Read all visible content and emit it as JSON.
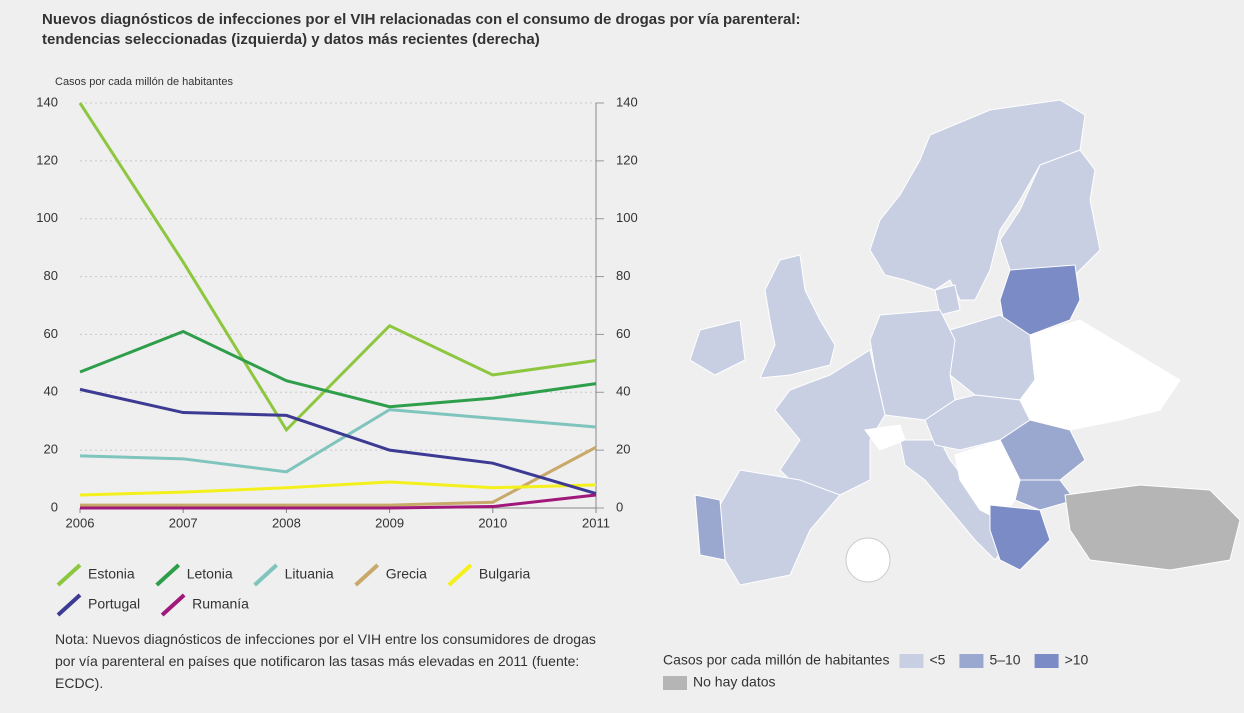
{
  "chart_data": {
    "type": "line",
    "title": [
      "Nuevos diagnósticos de infecciones por el VIH relacionadas con el consumo de drogas por vía parenteral:",
      "tendencias seleccionadas (izquierda) y datos más recientes (derecha)"
    ],
    "y_label": "Casos por cada millón de habitantes",
    "categories": [
      "2006",
      "2007",
      "2008",
      "2009",
      "2010",
      "2011"
    ],
    "series": [
      {
        "name": "Estonia",
        "color": "#8dc63f",
        "values": [
          140,
          85,
          27,
          63,
          46,
          51
        ]
      },
      {
        "name": "Letonia",
        "color": "#2e9e4a",
        "values": [
          47,
          61,
          44,
          35,
          38,
          43
        ]
      },
      {
        "name": "Lituania",
        "color": "#7fc4bd",
        "values": [
          18,
          17,
          12.5,
          34,
          31,
          28
        ]
      },
      {
        "name": "Grecia",
        "color": "#c8a96a",
        "values": [
          1,
          1,
          1,
          1,
          2,
          21
        ]
      },
      {
        "name": "Bulgaria",
        "color": "#f4f01c",
        "values": [
          4.5,
          5.5,
          7,
          9,
          7,
          8
        ]
      },
      {
        "name": "Portugal",
        "color": "#3c3a92",
        "values": [
          41,
          33,
          32,
          20,
          15.5,
          5
        ]
      },
      {
        "name": "Rumanía",
        "color": "#a0187a",
        "values": [
          0,
          0,
          0,
          0,
          0.5,
          4.5
        ]
      }
    ],
    "ylim": [
      0,
      140
    ],
    "yticks": [
      0,
      20,
      40,
      60,
      80,
      100,
      120,
      140
    ],
    "y2lim": [
      0,
      140
    ],
    "y2ticks": [
      0,
      20,
      40,
      60,
      80,
      100,
      120,
      140
    ],
    "note": "Nota: Nuevos diagnósticos de infecciones por el VIH entre los consumidores de drogas por vía parenteral en países que notificaron las tasas más elevadas en 2011 (fuente: ECDC).",
    "map": {
      "legend_title": "Casos por cada millón de habitantes",
      "classes": [
        {
          "label": "<5",
          "color": "#c8cfe3"
        },
        {
          "label": "5–10",
          "color": "#9aa7cf"
        },
        {
          "label": ">10",
          "color": "#7b8bc6"
        }
      ],
      "no_data": {
        "label": "No hay datos",
        "color": "#b5b5b5"
      }
    }
  }
}
